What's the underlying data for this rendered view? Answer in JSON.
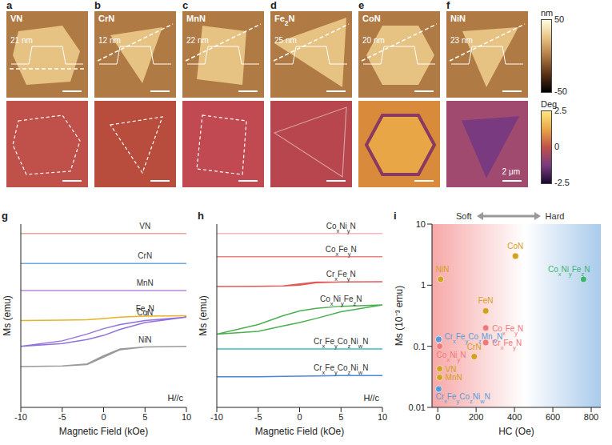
{
  "afm_images": {
    "panels": [
      {
        "letter": "a",
        "material": "VN",
        "height_label": "21 nm"
      },
      {
        "letter": "b",
        "material": "CrN",
        "height_label": "12 nm"
      },
      {
        "letter": "c",
        "material": "MnN",
        "height_label": "22 nm"
      },
      {
        "letter": "d",
        "material": "Fe2N",
        "height_label": "25 nm"
      },
      {
        "letter": "e",
        "material": "CoN",
        "height_label": "20 nm"
      },
      {
        "letter": "f",
        "material": "NiN",
        "height_label": "23 nm"
      }
    ],
    "scale_bar": "2 μm",
    "height_colorbar": {
      "unit": "nm",
      "range": [
        -50,
        50
      ],
      "ticks": [
        50,
        -50
      ]
    },
    "phase_colorbar": {
      "unit": "Deg",
      "range": [
        -2.5,
        2.5
      ],
      "ticks": [
        2.5,
        0,
        -2.5
      ]
    }
  },
  "chart_data": [
    {
      "panel": "g",
      "type": "line",
      "x_label": "Magnetic Field (kOe)",
      "y_label": "Ms (emu)",
      "annotation": "H//c",
      "tick_labels": "x",
      "xlim": [
        -10,
        10
      ],
      "xticks": [
        -10,
        -5,
        0,
        5,
        10
      ],
      "ylim": [
        -1.5,
        12
      ],
      "x": [
        10,
        5,
        2,
        0,
        -2,
        -5,
        -10,
        -5,
        -2,
        0,
        2,
        5,
        10
      ],
      "series": [
        {
          "name": "VN",
          "color": "#f2a0a0",
          "values": [
            11.3,
            11.3,
            11.3,
            11.3,
            11.3,
            11.3,
            11.3,
            11.3,
            11.3,
            11.3,
            11.3,
            11.3,
            11.3
          ]
        },
        {
          "name": "CrN",
          "color": "#6fa8dc",
          "values": [
            9.1,
            9.1,
            9.1,
            9.1,
            9.1,
            9.1,
            9.1,
            9.1,
            9.1,
            9.1,
            9.1,
            9.1,
            9.1
          ]
        },
        {
          "name": "MnN",
          "color": "#b48ad8",
          "values": [
            7.1,
            7.1,
            7.1,
            7.1,
            7.1,
            7.1,
            7.1,
            7.1,
            7.1,
            7.1,
            7.1,
            7.1,
            7.1
          ]
        },
        {
          "name": "Fe2N",
          "color": "#e6b422",
          "values": [
            5.25,
            5.22,
            5.15,
            5.05,
            4.95,
            4.92,
            4.9,
            4.92,
            4.95,
            5.05,
            5.15,
            5.22,
            5.25
          ]
        },
        {
          "name": "CoN",
          "color": "#9370db",
          "values": [
            5.15,
            4.9,
            4.6,
            4.3,
            3.9,
            3.4,
            3.0,
            3.2,
            3.5,
            3.8,
            4.25,
            4.75,
            5.15
          ]
        },
        {
          "name": "NiN",
          "color": "#9a9a9a",
          "values": [
            3.0,
            2.95,
            2.8,
            2.3,
            1.7,
            1.55,
            1.5,
            1.55,
            1.65,
            2.2,
            2.75,
            2.95,
            3.0
          ]
        }
      ]
    },
    {
      "panel": "h",
      "type": "line",
      "x_label": "Magnetic Field (kOe)",
      "y_label": "Ms (emu)",
      "annotation": "H//c",
      "tick_labels": "x",
      "xlim": [
        -10,
        10
      ],
      "xticks": [
        -10,
        -5,
        0,
        5,
        10
      ],
      "ylim": [
        -1.5,
        12
      ],
      "x": [
        10,
        5,
        2,
        0,
        -2,
        -5,
        -10,
        -5,
        -2,
        0,
        2,
        5,
        10
      ],
      "series": [
        {
          "name": "CoxNiyN",
          "color": "#f7b6c2",
          "values": [
            11.3,
            11.3,
            11.3,
            11.3,
            11.3,
            11.3,
            11.3,
            11.3,
            11.3,
            11.3,
            11.3,
            11.3,
            11.3
          ]
        },
        {
          "name": "CoxFeyN",
          "color": "#f08080",
          "values": [
            9.6,
            9.6,
            9.6,
            9.6,
            9.6,
            9.6,
            9.6,
            9.6,
            9.6,
            9.6,
            9.6,
            9.6,
            9.6
          ]
        },
        {
          "name": "CrxFeyN",
          "color": "#e05a5a",
          "values": [
            7.75,
            7.74,
            7.72,
            7.6,
            7.45,
            7.42,
            7.4,
            7.42,
            7.45,
            7.5,
            7.68,
            7.74,
            7.75
          ]
        },
        {
          "name": "CoxNiyFezN",
          "color": "#4caf50",
          "values": [
            6.05,
            5.95,
            5.8,
            5.6,
            5.25,
            4.6,
            3.9,
            4.1,
            4.5,
            4.75,
            5.05,
            5.55,
            6.05
          ]
        },
        {
          "name": "CrxFeyCozNiwN",
          "color": "#3fbfbf",
          "values": [
            2.8,
            2.8,
            2.8,
            2.8,
            2.8,
            2.8,
            2.8,
            2.8,
            2.8,
            2.8,
            2.8,
            2.8,
            2.8
          ]
        },
        {
          "name": "CrxFeyCozNiwN",
          "color": "#4a86d9",
          "values": [
            0.85,
            0.84,
            0.82,
            0.8,
            0.78,
            0.76,
            0.75,
            0.76,
            0.78,
            0.8,
            0.82,
            0.84,
            0.85
          ]
        }
      ]
    },
    {
      "panel": "i",
      "type": "scatter",
      "x_label": "HC (Oe)",
      "y_label": "Ms (10⁻³ emu)",
      "annotations": [
        "Soft",
        "Hard"
      ],
      "log": "y",
      "xlim": [
        -30,
        850
      ],
      "xticks": [
        0,
        200,
        400,
        600,
        800
      ],
      "ylim": [
        0.01,
        10
      ],
      "yticks": [
        0.01,
        0.1,
        1,
        10
      ],
      "labels": [
        "NiN",
        "CoN",
        "CoxNiyFezN",
        "FeN",
        "CoxFeyN",
        "CrxFeyN",
        "CrxFeyCozMnwN",
        "CoxNiyN",
        "CrN",
        "VN",
        "MnN",
        "CrxFeyCozNiwN"
      ],
      "x": [
        15,
        405,
        760,
        250,
        250,
        250,
        5,
        10,
        190,
        10,
        10,
        5
      ],
      "values": [
        1.25,
        3.0,
        1.25,
        0.38,
        0.2,
        0.115,
        0.13,
        0.1,
        0.068,
        0.043,
        0.031,
        0.02
      ],
      "colors": [
        "#d4a020",
        "#d4a020",
        "#3cb371",
        "#d4a020",
        "#f07878",
        "#f07878",
        "#5b9bd5",
        "#f07878",
        "#d4a020",
        "#d4a020",
        "#d4a020",
        "#5b9bd5"
      ]
    }
  ]
}
